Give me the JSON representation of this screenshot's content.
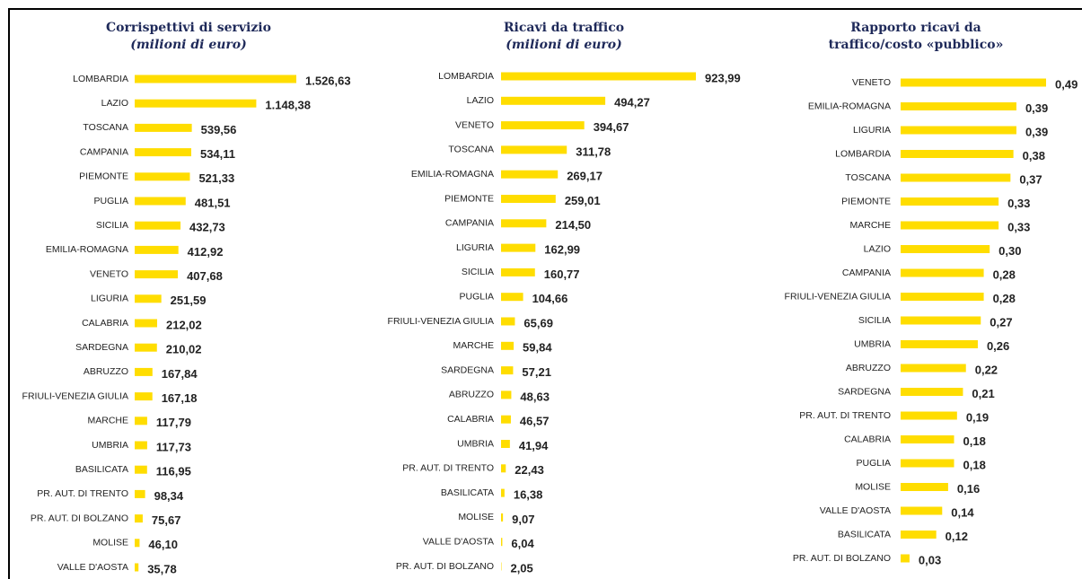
{
  "chart_data": [
    {
      "type": "bar",
      "orientation": "horizontal",
      "title": "Corrispettivi di servizio",
      "subtitle": "(milioni di euro)",
      "color": "#ffdd00",
      "categories": [
        "LOMBARDIA",
        "LAZIO",
        "TOSCANA",
        "CAMPANIA",
        "PIEMONTE",
        "PUGLIA",
        "SICILIA",
        "EMILIA-ROMAGNA",
        "VENETO",
        "LIGURIA",
        "CALABRIA",
        "SARDEGNA",
        "ABRUZZO",
        "FRIULI-VENEZIA GIULIA",
        "MARCHE",
        "UMBRIA",
        "BASILICATA",
        "PR. AUT. DI TRENTO",
        "PR. AUT. DI BOLZANO",
        "MOLISE",
        "VALLE D'AOSTA"
      ],
      "values": [
        1526.63,
        1148.38,
        539.56,
        534.11,
        521.33,
        481.51,
        432.73,
        412.92,
        407.68,
        251.59,
        212.02,
        210.02,
        167.84,
        167.18,
        117.79,
        117.73,
        116.95,
        98.34,
        75.67,
        46.1,
        35.78
      ],
      "value_labels": [
        "1.526,63",
        "1.148,38",
        "539,56",
        "534,11",
        "521,33",
        "481,51",
        "432,73",
        "412,92",
        "407,68",
        "251,59",
        "212,02",
        "210,02",
        "167,84",
        "167,18",
        "117,79",
        "117,73",
        "116,95",
        "98,34",
        "75,67",
        "46,10",
        "35,78"
      ]
    },
    {
      "type": "bar",
      "orientation": "horizontal",
      "title": "Ricavi da traffico",
      "subtitle": "(milioni di euro)",
      "color": "#ffdd00",
      "categories": [
        "LOMBARDIA",
        "LAZIO",
        "VENETO",
        "TOSCANA",
        "EMILIA-ROMAGNA",
        "PIEMONTE",
        "CAMPANIA",
        "LIGURIA",
        "SICILIA",
        "PUGLIA",
        "FRIULI-VENEZIA GIULIA",
        "MARCHE",
        "SARDEGNA",
        "ABRUZZO",
        "CALABRIA",
        "UMBRIA",
        "PR. AUT. DI TRENTO",
        "BASILICATA",
        "MOLISE",
        "VALLE D'AOSTA",
        "PR. AUT. DI BOLZANO"
      ],
      "values": [
        923.99,
        494.27,
        394.67,
        311.78,
        269.17,
        259.01,
        214.5,
        162.99,
        160.77,
        104.66,
        65.69,
        59.84,
        57.21,
        48.63,
        46.57,
        41.94,
        22.43,
        16.38,
        9.07,
        6.04,
        2.05
      ],
      "value_labels": [
        "923,99",
        "494,27",
        "394,67",
        "311,78",
        "269,17",
        "259,01",
        "214,50",
        "162,99",
        "160,77",
        "104,66",
        "65,69",
        "59,84",
        "57,21",
        "48,63",
        "46,57",
        "41,94",
        "22,43",
        "16,38",
        "9,07",
        "6,04",
        "2,05"
      ]
    },
    {
      "type": "bar",
      "orientation": "horizontal",
      "title": "Rapporto ricavi da traffico/costo «pubblico»",
      "color": "#ffdd00",
      "categories": [
        "VENETO",
        "EMILIA-ROMAGNA",
        "LIGURIA",
        "LOMBARDIA",
        "TOSCANA",
        "PIEMONTE",
        "MARCHE",
        "LAZIO",
        "CAMPANIA",
        "FRIULI-VENEZIA GIULIA",
        "SICILIA",
        "UMBRIA",
        "ABRUZZO",
        "SARDEGNA",
        "PR. AUT. DI TRENTO",
        "CALABRIA",
        "PUGLIA",
        "MOLISE",
        "VALLE D'AOSTA",
        "BASILICATA",
        "PR. AUT. DI BOLZANO"
      ],
      "values": [
        0.49,
        0.39,
        0.39,
        0.38,
        0.37,
        0.33,
        0.33,
        0.3,
        0.28,
        0.28,
        0.27,
        0.26,
        0.22,
        0.21,
        0.19,
        0.18,
        0.18,
        0.16,
        0.14,
        0.12,
        0.03
      ],
      "value_labels": [
        "0,49",
        "0,39",
        "0,39",
        "0,38",
        "0,37",
        "0,33",
        "0,33",
        "0,30",
        "0,28",
        "0,28",
        "0,27",
        "0,26",
        "0,22",
        "0,21",
        "0,19",
        "0,18",
        "0,18",
        "0,16",
        "0,14",
        "0,12",
        "0,03"
      ]
    }
  ]
}
